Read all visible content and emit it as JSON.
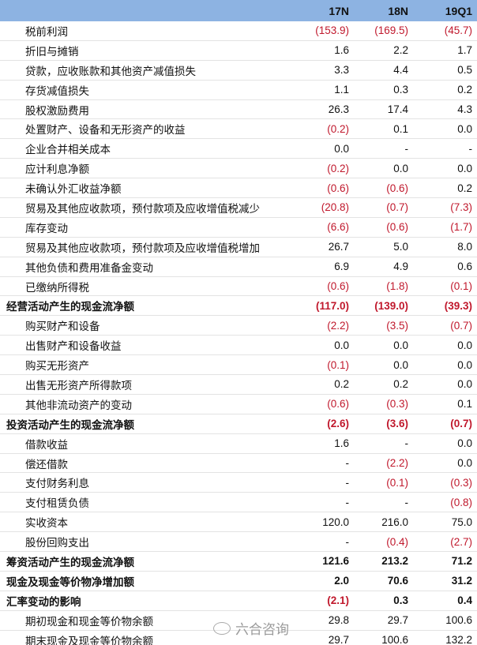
{
  "header": {
    "columns": [
      "",
      "17N",
      "18N",
      "19Q1"
    ]
  },
  "colors": {
    "header_bg": "#8db3e2",
    "negative": "#c0182c"
  },
  "watermark": "六合咨询",
  "rows": [
    {
      "label": "税前利润",
      "bold": false,
      "values": [
        "(153.9)",
        "(169.5)",
        "(45.7)"
      ]
    },
    {
      "label": "折旧与摊销",
      "bold": false,
      "values": [
        "1.6",
        "2.2",
        "1.7"
      ]
    },
    {
      "label": "贷款，应收账款和其他资产减值损失",
      "bold": false,
      "values": [
        "3.3",
        "4.4",
        "0.5"
      ]
    },
    {
      "label": "存货减值损失",
      "bold": false,
      "values": [
        "1.1",
        "0.3",
        "0.2"
      ]
    },
    {
      "label": "股权激励费用",
      "bold": false,
      "values": [
        "26.3",
        "17.4",
        "4.3"
      ]
    },
    {
      "label": "处置财产、设备和无形资产的收益",
      "bold": false,
      "values": [
        "(0.2)",
        "0.1",
        "0.0"
      ]
    },
    {
      "label": "企业合并相关成本",
      "bold": false,
      "values": [
        "0.0",
        "-",
        "-"
      ]
    },
    {
      "label": "应计利息净额",
      "bold": false,
      "values": [
        "(0.2)",
        "0.0",
        "0.0"
      ]
    },
    {
      "label": "未确认外汇收益净额",
      "bold": false,
      "values": [
        "(0.6)",
        "(0.6)",
        "0.2"
      ]
    },
    {
      "label": "贸易及其他应收款项，预付款项及应收增值税减少",
      "bold": false,
      "values": [
        "(20.8)",
        "(0.7)",
        "(7.3)"
      ]
    },
    {
      "label": "库存变动",
      "bold": false,
      "values": [
        "(6.6)",
        "(0.6)",
        "(1.7)"
      ]
    },
    {
      "label": "贸易及其他应收款项，预付款项及应收增值税增加",
      "bold": false,
      "values": [
        "26.7",
        "5.0",
        "8.0"
      ]
    },
    {
      "label": "其他负债和费用准备金变动",
      "bold": false,
      "values": [
        "6.9",
        "4.9",
        "0.6"
      ]
    },
    {
      "label": "已缴纳所得税",
      "bold": false,
      "values": [
        "(0.6)",
        "(1.8)",
        "(0.1)"
      ]
    },
    {
      "label": "经营活动产生的现金流净额",
      "bold": true,
      "values": [
        "(117.0)",
        "(139.0)",
        "(39.3)"
      ]
    },
    {
      "label": "购买财产和设备",
      "bold": false,
      "values": [
        "(2.2)",
        "(3.5)",
        "(0.7)"
      ]
    },
    {
      "label": "出售财产和设备收益",
      "bold": false,
      "values": [
        "0.0",
        "0.0",
        "0.0"
      ]
    },
    {
      "label": "购买无形资产",
      "bold": false,
      "values": [
        "(0.1)",
        "0.0",
        "0.0"
      ]
    },
    {
      "label": "出售无形资产所得款项",
      "bold": false,
      "values": [
        "0.2",
        "0.2",
        "0.0"
      ]
    },
    {
      "label": "其他非流动资产的变动",
      "bold": false,
      "values": [
        "(0.6)",
        "(0.3)",
        "0.1"
      ]
    },
    {
      "label": "投资活动产生的现金流净额",
      "bold": true,
      "values": [
        "(2.6)",
        "(3.6)",
        "(0.7)"
      ]
    },
    {
      "label": "借款收益",
      "bold": false,
      "values": [
        "1.6",
        "-",
        "0.0"
      ]
    },
    {
      "label": "偿还借款",
      "bold": false,
      "values": [
        "-",
        "(2.2)",
        "0.0"
      ]
    },
    {
      "label": "支付财务利息",
      "bold": false,
      "values": [
        "-",
        "(0.1)",
        "(0.3)"
      ]
    },
    {
      "label": "支付租赁负债",
      "bold": false,
      "values": [
        "-",
        "-",
        "(0.8)"
      ]
    },
    {
      "label": "实收资本",
      "bold": false,
      "values": [
        "120.0",
        "216.0",
        "75.0"
      ]
    },
    {
      "label": "股份回购支出",
      "bold": false,
      "values": [
        "-",
        "(0.4)",
        "(2.7)"
      ]
    },
    {
      "label": "筹资活动产生的现金流净额",
      "bold": true,
      "values": [
        "121.6",
        "213.2",
        "71.2"
      ]
    },
    {
      "label": "现金及现金等价物净增加额",
      "bold": true,
      "values": [
        "2.0",
        "70.6",
        "31.2"
      ]
    },
    {
      "label": "汇率变动的影响",
      "bold": true,
      "values": [
        "(2.1)",
        "0.3",
        "0.4"
      ]
    },
    {
      "label": "期初现金和现金等价物余额",
      "bold": false,
      "values": [
        "29.8",
        "29.7",
        "100.6"
      ]
    },
    {
      "label": "期末现金及现金等价物余额",
      "bold": false,
      "values": [
        "29.7",
        "100.6",
        "132.2"
      ]
    }
  ]
}
